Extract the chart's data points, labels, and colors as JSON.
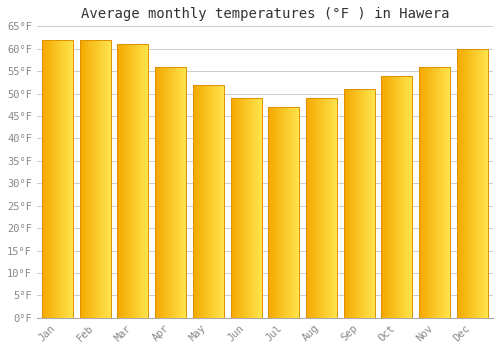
{
  "title": "Average monthly temperatures (°F ) in Hawera",
  "months": [
    "Jan",
    "Feb",
    "Mar",
    "Apr",
    "May",
    "Jun",
    "Jul",
    "Aug",
    "Sep",
    "Oct",
    "Nov",
    "Dec"
  ],
  "values": [
    62,
    62,
    61,
    56,
    52,
    49,
    47,
    49,
    51,
    54,
    56,
    60
  ],
  "bar_color_left": "#F5A800",
  "bar_color_right": "#FFD966",
  "bar_edge_color": "#E09000",
  "ylim": [
    0,
    65
  ],
  "yticks": [
    0,
    5,
    10,
    15,
    20,
    25,
    30,
    35,
    40,
    45,
    50,
    55,
    60,
    65
  ],
  "background_color": "#FFFFFF",
  "grid_color": "#CCCCCC",
  "title_fontsize": 10,
  "tick_fontsize": 7.5,
  "tick_color": "#888888"
}
